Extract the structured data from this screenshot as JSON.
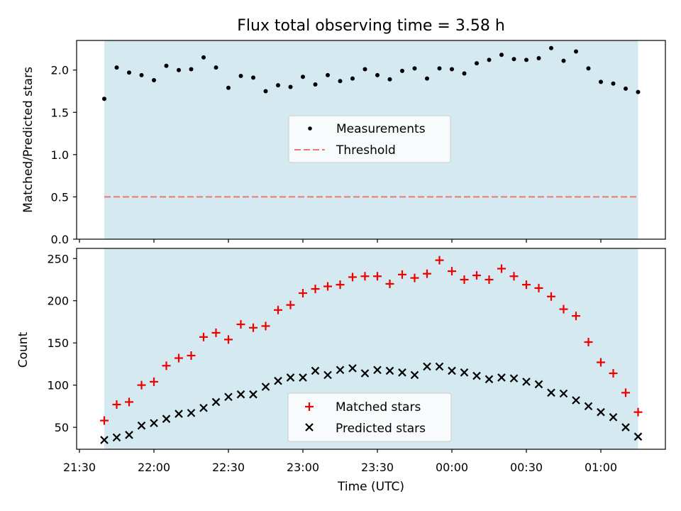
{
  "chart_data": [
    {
      "type": "scatter",
      "title": "Flux total observing time = 3.58 h",
      "ylabel": "Matched/Predicted stars",
      "xlabel": "",
      "ylim": [
        0,
        2.35
      ],
      "yticks": [
        0.0,
        0.5,
        1.0,
        1.5,
        2.0
      ],
      "ytick_labels": [
        "0.0",
        "0.5",
        "1.0",
        "1.5",
        "2.0"
      ],
      "observing_window": {
        "start": "21:40",
        "end": "01:15",
        "color": "#d4eaf0"
      },
      "legend_position": "center",
      "series": [
        {
          "name": "Measurements",
          "marker": "dot",
          "color": "#000000",
          "x": [
            "21:40",
            "21:45",
            "21:50",
            "21:55",
            "22:00",
            "22:05",
            "22:10",
            "22:15",
            "22:20",
            "22:25",
            "22:30",
            "22:35",
            "22:40",
            "22:45",
            "22:50",
            "22:55",
            "23:00",
            "23:05",
            "23:10",
            "23:15",
            "23:20",
            "23:25",
            "23:30",
            "23:35",
            "23:40",
            "23:45",
            "23:50",
            "23:55",
            "00:00",
            "00:05",
            "00:10",
            "00:15",
            "00:20",
            "00:25",
            "00:30",
            "00:35",
            "00:40",
            "00:45",
            "00:50",
            "00:55",
            "01:00",
            "01:05",
            "01:10",
            "01:15"
          ],
          "values": [
            1.66,
            2.03,
            1.97,
            1.94,
            1.88,
            2.05,
            2.0,
            2.01,
            2.15,
            2.03,
            1.79,
            1.93,
            1.91,
            1.75,
            1.82,
            1.8,
            1.92,
            1.83,
            1.94,
            1.87,
            1.9,
            2.01,
            1.94,
            1.89,
            1.99,
            2.02,
            1.9,
            2.02,
            2.01,
            1.96,
            2.08,
            2.12,
            2.18,
            2.13,
            2.12,
            2.14,
            2.26,
            2.11,
            2.22,
            2.02,
            1.86,
            1.84,
            1.78,
            1.74
          ]
        },
        {
          "name": "Threshold",
          "marker": "dashed-line",
          "color": "#ee7777",
          "x": [
            "21:40",
            "01:15"
          ],
          "values": [
            0.5,
            0.5
          ]
        }
      ]
    },
    {
      "type": "scatter",
      "title": "",
      "ylabel": "Count",
      "xlabel": "Time (UTC)",
      "ylim": [
        24,
        262
      ],
      "yticks": [
        50,
        100,
        150,
        200,
        250
      ],
      "ytick_labels": [
        "50",
        "100",
        "150",
        "200",
        "250"
      ],
      "x_ticks": [
        "21:30",
        "22:00",
        "22:30",
        "23:00",
        "23:30",
        "00:00",
        "00:30",
        "01:00"
      ],
      "observing_window": {
        "start": "21:40",
        "end": "01:15",
        "color": "#d4eaf0"
      },
      "legend_position": "lower center",
      "series": [
        {
          "name": "Matched stars",
          "marker": "plus",
          "color": "#ee0000",
          "x": [
            "21:40",
            "21:45",
            "21:50",
            "21:55",
            "22:00",
            "22:05",
            "22:10",
            "22:15",
            "22:20",
            "22:25",
            "22:30",
            "22:35",
            "22:40",
            "22:45",
            "22:50",
            "22:55",
            "23:00",
            "23:05",
            "23:10",
            "23:15",
            "23:20",
            "23:25",
            "23:30",
            "23:35",
            "23:40",
            "23:45",
            "23:50",
            "23:55",
            "00:00",
            "00:05",
            "00:10",
            "00:15",
            "00:20",
            "00:25",
            "00:30",
            "00:35",
            "00:40",
            "00:45",
            "00:50",
            "00:55",
            "01:00",
            "01:05",
            "01:10",
            "01:15"
          ],
          "values": [
            58,
            77,
            80,
            100,
            104,
            123,
            132,
            135,
            157,
            162,
            154,
            172,
            168,
            170,
            189,
            195,
            209,
            214,
            217,
            219,
            228,
            229,
            229,
            220,
            231,
            227,
            232,
            248,
            235,
            225,
            230,
            225,
            238,
            229,
            219,
            215,
            205,
            190,
            182,
            151,
            127,
            114,
            91,
            68
          ]
        },
        {
          "name": "Predicted stars",
          "marker": "x",
          "color": "#000000",
          "x": [
            "21:40",
            "21:45",
            "21:50",
            "21:55",
            "22:00",
            "22:05",
            "22:10",
            "22:15",
            "22:20",
            "22:25",
            "22:30",
            "22:35",
            "22:40",
            "22:45",
            "22:50",
            "22:55",
            "23:00",
            "23:05",
            "23:10",
            "23:15",
            "23:20",
            "23:25",
            "23:30",
            "23:35",
            "23:40",
            "23:45",
            "23:50",
            "23:55",
            "00:00",
            "00:05",
            "00:10",
            "00:15",
            "00:20",
            "00:25",
            "00:30",
            "00:35",
            "00:40",
            "00:45",
            "00:50",
            "00:55",
            "01:00",
            "01:05",
            "01:10",
            "01:15"
          ],
          "values": [
            35,
            38,
            41,
            52,
            55,
            60,
            66,
            67,
            73,
            80,
            86,
            89,
            89,
            98,
            105,
            109,
            109,
            117,
            112,
            118,
            120,
            114,
            118,
            117,
            115,
            112,
            122,
            122,
            117,
            115,
            111,
            107,
            109,
            108,
            104,
            101,
            91,
            90,
            82,
            75,
            68,
            62,
            50,
            39
          ]
        }
      ]
    }
  ]
}
